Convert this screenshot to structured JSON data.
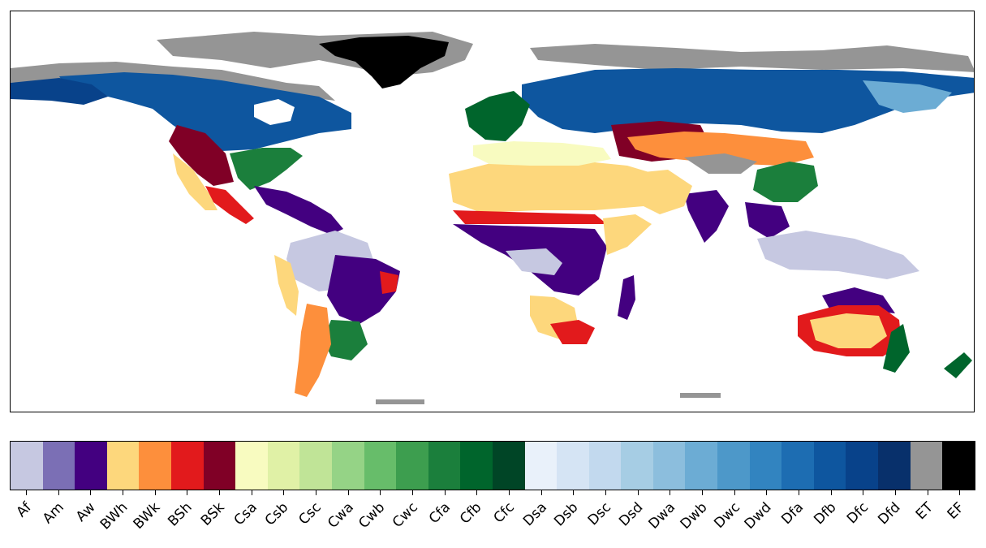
{
  "legend": {
    "classes": [
      {
        "code": "Af",
        "color": "#c6c8e1"
      },
      {
        "code": "Am",
        "color": "#7b6fb5"
      },
      {
        "code": "Aw",
        "color": "#430080"
      },
      {
        "code": "BWh",
        "color": "#fdd77c"
      },
      {
        "code": "BWk",
        "color": "#fd8f3c"
      },
      {
        "code": "BSh",
        "color": "#e21a1c"
      },
      {
        "code": "BSk",
        "color": "#800026"
      },
      {
        "code": "Csa",
        "color": "#f8fbc0"
      },
      {
        "code": "Csb",
        "color": "#e0f1a6"
      },
      {
        "code": "Csc",
        "color": "#c0e497"
      },
      {
        "code": "Cwa",
        "color": "#95d386"
      },
      {
        "code": "Cwb",
        "color": "#67bd6a"
      },
      {
        "code": "Cwc",
        "color": "#3d9e4f"
      },
      {
        "code": "Cfa",
        "color": "#1b7f3c"
      },
      {
        "code": "Cfb",
        "color": "#00652c"
      },
      {
        "code": "Cfc",
        "color": "#004526"
      },
      {
        "code": "Dsa",
        "color": "#e9f1fa"
      },
      {
        "code": "Dsb",
        "color": "#d5e4f4"
      },
      {
        "code": "Dsc",
        "color": "#c2d9ee"
      },
      {
        "code": "Dsd",
        "color": "#a6cde4"
      },
      {
        "code": "Dwa",
        "color": "#8cbedd"
      },
      {
        "code": "Dwb",
        "color": "#6cacd4"
      },
      {
        "code": "Dwc",
        "color": "#4d98c9"
      },
      {
        "code": "Dwd",
        "color": "#3284c0"
      },
      {
        "code": "Dfa",
        "color": "#1d6db2"
      },
      {
        "code": "Dfb",
        "color": "#0e569f"
      },
      {
        "code": "Dfc",
        "color": "#08428a"
      },
      {
        "code": "Dfd",
        "color": "#08306b"
      },
      {
        "code": "ET",
        "color": "#959595"
      },
      {
        "code": "EF",
        "color": "#000000"
      }
    ]
  }
}
